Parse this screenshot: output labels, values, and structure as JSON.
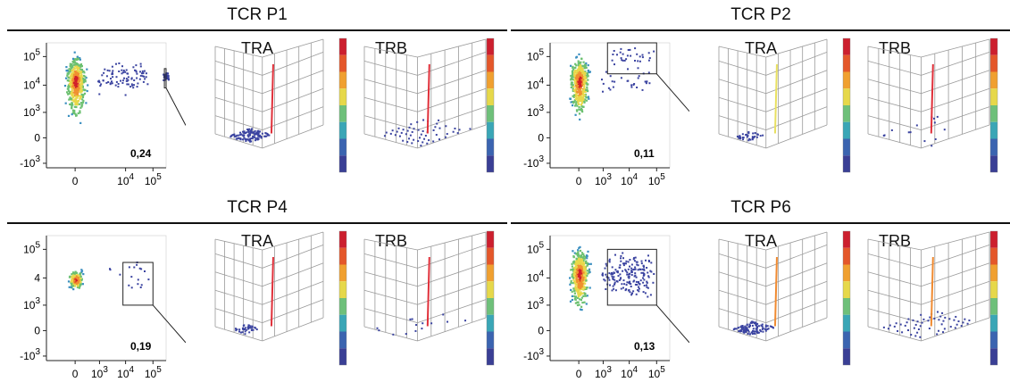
{
  "chart_data": [
    {
      "type": "scatter",
      "title": "TCR P1",
      "gate_value": "0,24",
      "plot3d_titles": [
        "TRA",
        "TRB"
      ],
      "y_ticks": [
        "10^5",
        "10^4",
        "10^3",
        "0",
        "-10^3"
      ],
      "x_ticks": [
        "0",
        "10^4",
        "10^5"
      ],
      "tra_bar_color": "#e0303a",
      "trb_bar_color": "#e0303a",
      "tra_xlim": [
        0,
        300000
      ],
      "tra_ylim": [
        0,
        300000
      ],
      "tra_gate": [
        260000,
        300000,
        8000,
        38000
      ],
      "tra_floor": "block",
      "trb_floor": "grid"
    },
    {
      "type": "scatter",
      "title": "TCR P2",
      "gate_value": "0,11",
      "plot3d_titles": [
        "TRA",
        "TRB"
      ],
      "y_ticks": [
        "10^5",
        "10^4",
        "10^3",
        "0",
        "-10^3"
      ],
      "x_ticks": [
        "0",
        "10^3",
        "10^4",
        "10^5"
      ],
      "tra_bar_color": "#e8e060",
      "trb_bar_color": "#e0303a",
      "tra_xlim": [
        -1500,
        200000
      ],
      "tra_ylim": [
        0,
        300000
      ],
      "tra_gate": [
        1500,
        100000,
        25000,
        300000
      ],
      "tra_floor": "small",
      "trb_floor": "sparse"
    },
    {
      "type": "scatter",
      "title": "TCR P4",
      "gate_value": "0,19",
      "plot3d_titles": [
        "TRA",
        "TRB"
      ],
      "y_ticks": [
        "10^5",
        "4",
        "10^3",
        "0",
        "-10^3"
      ],
      "x_ticks": [
        "0",
        "10^3",
        "10^4",
        "10^5"
      ],
      "tra_bar_color": "#e0303a",
      "trb_bar_color": "#e0303a",
      "tra_xlim": [
        -1500,
        200000
      ],
      "tra_ylim": [
        0,
        300000
      ],
      "tra_gate": [
        8000,
        100000,
        1000,
        35000
      ],
      "tra_floor": "small",
      "trb_floor": "sparse"
    },
    {
      "type": "scatter",
      "title": "TCR P6",
      "gate_value": "0,13",
      "plot3d_titles": [
        "TRA",
        "TRB"
      ],
      "y_ticks": [
        "10^5",
        "10^4",
        "10^3",
        "0",
        "-10^3"
      ],
      "x_ticks": [
        "0",
        "10^3",
        "10^4",
        "10^5"
      ],
      "tra_bar_color": "#f08a30",
      "trb_bar_color": "#f08a30",
      "tra_xlim": [
        -1500,
        200000
      ],
      "tra_ylim": [
        0,
        300000
      ],
      "tra_gate": [
        1500,
        100000,
        1000,
        100000
      ],
      "tra_floor": "block",
      "trb_floor": "grid"
    }
  ],
  "colors": {
    "low": "#3a43a0",
    "high": "#d11f2a",
    "colorbar": [
      "#3a3f95",
      "#3b64b0",
      "#3aa6b6",
      "#6ec07a",
      "#e6d84a",
      "#f0a030",
      "#e4572a",
      "#cc1f2e"
    ]
  }
}
